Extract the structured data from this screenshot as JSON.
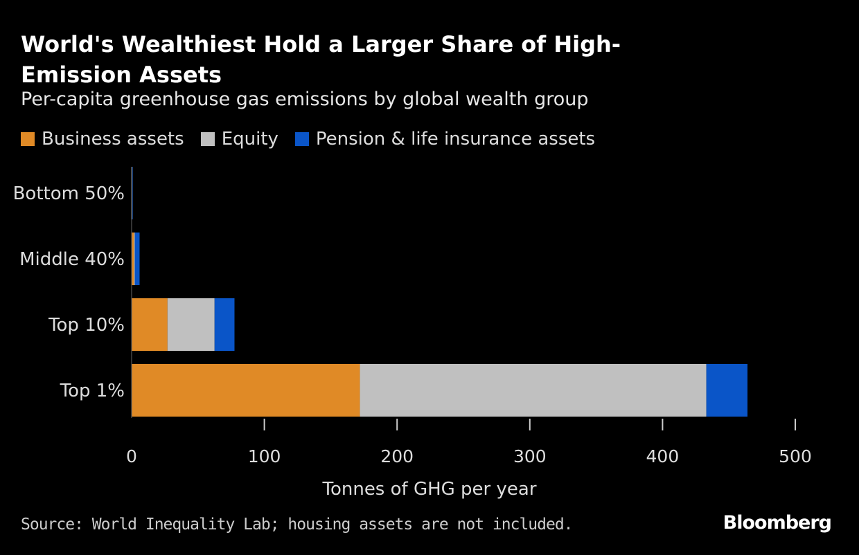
{
  "chart_data": {
    "type": "bar",
    "orientation": "horizontal",
    "stacked": true,
    "title": "World's Wealthiest Hold a Larger Share of High-Emission Assets",
    "subtitle": "Per-capita greenhouse gas emissions by global wealth group",
    "xlabel": "Tonnes of GHG per year",
    "ylabel": "",
    "xlim": [
      0,
      500
    ],
    "xticks": [
      0,
      100,
      200,
      300,
      400,
      500
    ],
    "grid": false,
    "legend_position": "top-left",
    "categories": [
      "Bottom 50%",
      "Middle 40%",
      "Top 10%",
      "Top 1%"
    ],
    "series": [
      {
        "name": "Business assets",
        "color": "#e08a26",
        "values": [
          0.2,
          1.8,
          27,
          172
        ]
      },
      {
        "name": "Equity",
        "color": "#c0c0c0",
        "values": [
          0.3,
          0.6,
          35.5,
          261
        ]
      },
      {
        "name": "Pension & life insurance assets",
        "color": "#0a55c8",
        "values": [
          0.1,
          3.6,
          15,
          31
        ]
      }
    ]
  },
  "source": "Source: World Inequality Lab; housing assets are not included.",
  "brand": "Bloomberg"
}
